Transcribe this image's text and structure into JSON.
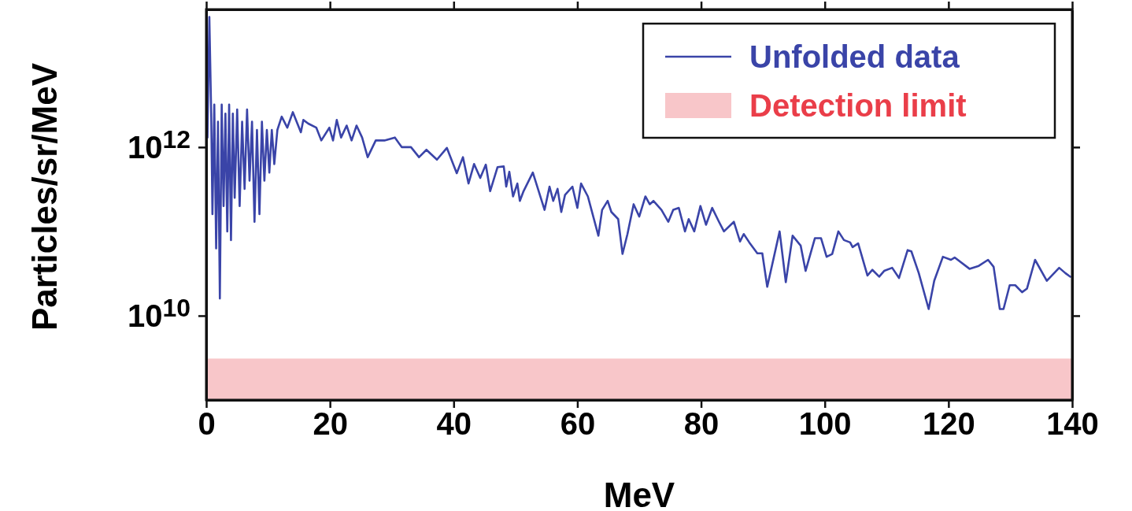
{
  "chart_data": {
    "type": "line",
    "xlabel": "MeV",
    "ylabel": "Particles/sr/MeV",
    "log": "y",
    "legend": "top right",
    "marker": "none",
    "line_style": "solid",
    "grid": false,
    "xlim": [
      0,
      140
    ],
    "xticks": [
      0,
      20,
      40,
      60,
      80,
      100,
      120,
      140
    ],
    "ylim": [
      1000000000.0,
      43000000000000.0
    ],
    "yticks": [
      {
        "value": 10000000000.0,
        "label": "10$^{10}$"
      },
      {
        "value": 1000000000000.0,
        "label": "10$^{12}$"
      }
    ],
    "bands": [
      {
        "axis": "y",
        "from": 1000000000.0,
        "to": 3100000000.0,
        "label": "Detection limit",
        "color": "#f8c6c9"
      }
    ],
    "series": [
      {
        "name": "Unfolded data",
        "color": "#3a44a8",
        "x": [
          0.2,
          0.5,
          0.8,
          1.0,
          1.3,
          1.6,
          1.9,
          2.2,
          2.5,
          2.8,
          3.1,
          3.4,
          3.7,
          4.0,
          4.3,
          4.6,
          5.0,
          5.4,
          5.8,
          6.2,
          6.6,
          7.0,
          7.4,
          7.8,
          8.2,
          8.6,
          9.0,
          9.4,
          9.8,
          10.2,
          10.6,
          11.0,
          11.5,
          12.2,
          13.1,
          14.0,
          15.3,
          15.7,
          16.5,
          17.8,
          18.6,
          19.9,
          20.5,
          21.1,
          21.8,
          22.7,
          23.5,
          24.3,
          25.2,
          26.1,
          27.4,
          28.8,
          30.5,
          31.6,
          33.1,
          34.4,
          35.6,
          37.3,
          38.9,
          40.5,
          41.5,
          42.4,
          43.3,
          44.3,
          45.2,
          45.9,
          47.1,
          48.1,
          48.5,
          49.0,
          49.6,
          50.3,
          50.7,
          51.3,
          52.8,
          54.7,
          55.5,
          56.1,
          56.8,
          57.4,
          58.0,
          59.2,
          60.0,
          60.6,
          61.7,
          63.4,
          64.0,
          64.9,
          65.5,
          66.6,
          67.3,
          68.1,
          69.1,
          70.0,
          71.0,
          71.7,
          72.3,
          73.6,
          74.7,
          75.5,
          76.4,
          77.4,
          78.0,
          78.9,
          79.9,
          80.8,
          81.8,
          82.9,
          83.7,
          85.3,
          86.3,
          86.9,
          87.8,
          89.1,
          89.9,
          90.7,
          92.7,
          93.7,
          94.8,
          96.1,
          96.9,
          98.4,
          99.4,
          100.3,
          101.2,
          102.2,
          103.1,
          104.1,
          104.5,
          105.4,
          106.9,
          107.7,
          108.8,
          109.6,
          110.9,
          112.0,
          113.4,
          114.0,
          115.2,
          116.8,
          117.7,
          119.1,
          120.4,
          121.0,
          123.4,
          124.9,
          126.4,
          127.3,
          128.3,
          128.9,
          129.9,
          130.8,
          131.9,
          132.7,
          134.0,
          135.9,
          137.9,
          138.9,
          139.7
        ],
        "values": [
          1300000000000.0,
          35000000000000.0,
          2500000000000.0,
          160000000000.0,
          3200000000000.0,
          63000000000.0,
          2000000000000.0,
          16000000000.0,
          3200000000000.0,
          200000000000.0,
          2500000000000.0,
          100000000000.0,
          3200000000000.0,
          79000000000.0,
          2500000000000.0,
          250000000000.0,
          2800000000000.0,
          200000000000.0,
          2000000000000.0,
          320000000000.0,
          2800000000000.0,
          400000000000.0,
          2000000000000.0,
          130000000000.0,
          1600000000000.0,
          160000000000.0,
          2000000000000.0,
          400000000000.0,
          1600000000000.0,
          500000000000.0,
          1600000000000.0,
          630000000000.0,
          1600000000000.0,
          2300000000000.0,
          1700000000000.0,
          2600000000000.0,
          1500000000000.0,
          2100000000000.0,
          1900000000000.0,
          1700000000000.0,
          1200000000000.0,
          1700000000000.0,
          1200000000000.0,
          2100000000000.0,
          1300000000000.0,
          1800000000000.0,
          1200000000000.0,
          1800000000000.0,
          1300000000000.0,
          760000000000.0,
          1200000000000.0,
          1200000000000.0,
          1300000000000.0,
          1000000000000.0,
          1000000000000.0,
          760000000000.0,
          930000000000.0,
          710000000000.0,
          980000000000.0,
          490000000000.0,
          760000000000.0,
          370000000000.0,
          630000000000.0,
          430000000000.0,
          620000000000.0,
          300000000000.0,
          580000000000.0,
          590000000000.0,
          340000000000.0,
          510000000000.0,
          260000000000.0,
          370000000000.0,
          230000000000.0,
          300000000000.0,
          500000000000.0,
          180000000000.0,
          340000000000.0,
          230000000000.0,
          320000000000.0,
          170000000000.0,
          270000000000.0,
          340000000000.0,
          190000000000.0,
          370000000000.0,
          260000000000.0,
          89000000000.0,
          180000000000.0,
          230000000000.0,
          170000000000.0,
          140000000000.0,
          54000000000.0,
          93000000000.0,
          210000000000.0,
          150000000000.0,
          260000000000.0,
          210000000000.0,
          230000000000.0,
          180000000000.0,
          130000000000.0,
          180000000000.0,
          190000000000.0,
          100000000000.0,
          140000000000.0,
          100000000000.0,
          200000000000.0,
          120000000000.0,
          190000000000.0,
          130000000000.0,
          100000000000.0,
          130000000000.0,
          76000000000.0,
          93000000000.0,
          74000000000.0,
          55000000000.0,
          55000000000.0,
          22000000000.0,
          100000000000.0,
          25000000000.0,
          89000000000.0,
          68000000000.0,
          34000000000.0,
          83000000000.0,
          83000000000.0,
          50000000000.0,
          54000000000.0,
          100000000000.0,
          79000000000.0,
          74000000000.0,
          65000000000.0,
          72000000000.0,
          30000000000.0,
          35000000000.0,
          29000000000.0,
          34000000000.0,
          37000000000.0,
          28000000000.0,
          60000000000.0,
          58000000000.0,
          32000000000.0,
          12000000000.0,
          26000000000.0,
          50000000000.0,
          46000000000.0,
          49000000000.0,
          36000000000.0,
          39000000000.0,
          46000000000.0,
          38000000000.0,
          12000000000.0,
          12000000000.0,
          23000000000.0,
          23000000000.0,
          19000000000.0,
          21000000000.0,
          46000000000.0,
          26000000000.0,
          37000000000.0,
          32000000000.0,
          29000000000.0
        ]
      }
    ]
  }
}
